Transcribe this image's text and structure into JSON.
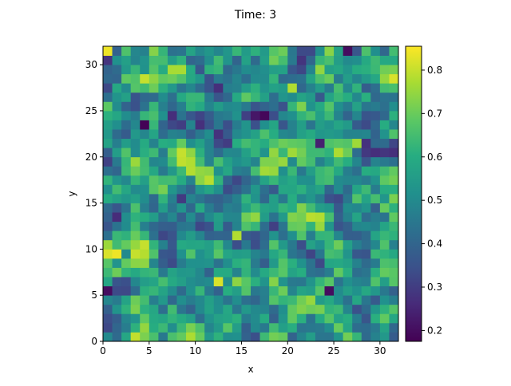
{
  "chart_data": {
    "type": "heatmap",
    "title": "Time: 3",
    "xlabel": "x",
    "ylabel": "y",
    "grid_size": 32,
    "xlim": [
      0,
      32
    ],
    "ylim": [
      0,
      32
    ],
    "xticks": [
      0,
      5,
      10,
      15,
      20,
      25,
      30
    ],
    "yticks": [
      0,
      5,
      10,
      15,
      20,
      25,
      30
    ],
    "colormap": "viridis",
    "color_range": [
      0.175,
      0.855
    ],
    "colorbar_ticks": [
      0.2,
      0.3,
      0.4,
      0.5,
      0.6,
      0.7,
      0.8
    ],
    "grid": false,
    "features": [
      {
        "x": 0.5,
        "y": 31.5,
        "value": 0.84
      },
      {
        "x": 31.5,
        "y": 28.5,
        "value": 0.82
      },
      {
        "x": 1.5,
        "y": 9.5,
        "value": 0.84
      },
      {
        "x": 0.5,
        "y": 9.5,
        "value": 0.82
      },
      {
        "x": 12.5,
        "y": 6.5,
        "value": 0.82
      },
      {
        "x": 14.5,
        "y": 11.5,
        "value": 0.78
      },
      {
        "x": 20.5,
        "y": 27.5,
        "value": 0.78
      },
      {
        "x": 27.5,
        "y": 21.5,
        "value": 0.76
      },
      {
        "x": 4.5,
        "y": 23.5,
        "value": 0.18
      },
      {
        "x": 17.5,
        "y": 24.5,
        "value": 0.19
      },
      {
        "x": 16.5,
        "y": 24.5,
        "value": 0.22
      },
      {
        "x": 0.5,
        "y": 5.5,
        "value": 0.2
      },
      {
        "x": 24.5,
        "y": 5.5,
        "value": 0.2
      },
      {
        "x": 26.5,
        "y": 31.5,
        "value": 0.2
      },
      {
        "x": 23.5,
        "y": 21.5,
        "value": 0.24
      }
    ]
  }
}
